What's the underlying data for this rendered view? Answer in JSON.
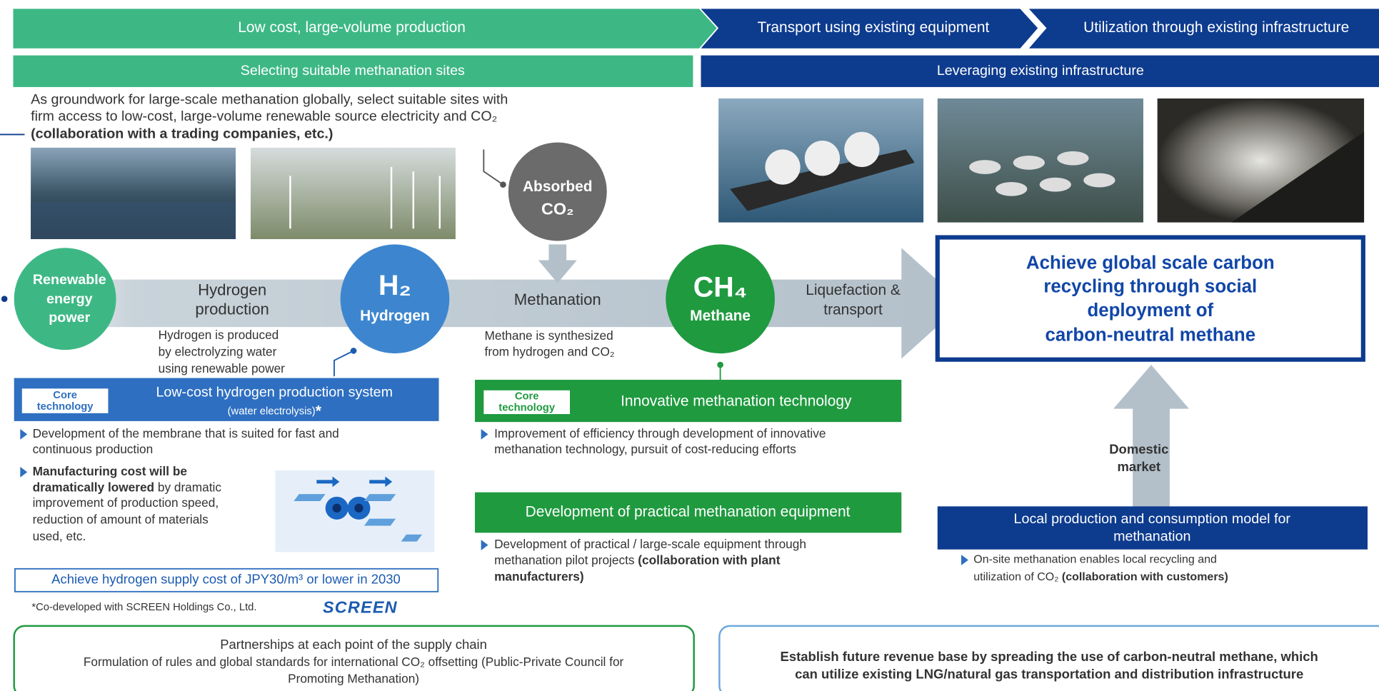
{
  "header": {
    "stage1": "Low cost, large-volume production",
    "stage2": "Transport using existing equipment",
    "stage3": "Utilization through existing infrastructure",
    "sub1": "Selecting suitable methanation sites",
    "sub2": "Leveraging existing infrastructure"
  },
  "sites": {
    "lines": [
      "As groundwork for large-scale methanation globally, select suitable sites with",
      "firm access to low-cost, large-volume renewable source electricity and CO₂",
      "(collaboration with a trading companies, etc.)"
    ]
  },
  "flow": {
    "renewable": [
      "Renewable",
      "energy",
      "power"
    ],
    "hydrogen_production": [
      "Hydrogen",
      "production"
    ],
    "hydrogen_note": [
      "Hydrogen is produced",
      "by electrolyzing water",
      "using renewable power"
    ],
    "h2_symbol": "H₂",
    "h2_label": "Hydrogen",
    "co2": [
      "Absorbed",
      "CO₂"
    ],
    "methanation": "Methanation",
    "methane_note": [
      "Methane is synthesized",
      "from hydrogen and CO₂"
    ],
    "ch4_symbol": "CH₄",
    "ch4_label": "Methane",
    "liquefaction": [
      "Liquefaction &",
      "transport"
    ]
  },
  "goal": [
    "Achieve global scale carbon",
    "recycling through social",
    "deployment of",
    "carbon-neutral methane"
  ],
  "domestic": [
    "Domestic",
    "market"
  ],
  "hydrogen_system": {
    "badge": [
      "Core",
      "technology"
    ],
    "title": "Low-cost hydrogen production system",
    "subtitle": "(water electrolysis)",
    "asterisk": "*",
    "bullet1": [
      "Development of the membrane that is suited for fast and",
      "continuous production"
    ],
    "bullet2_bold": [
      "Manufacturing cost will be",
      "dramatically lowered"
    ],
    "bullet2": [
      " by dramatic",
      "improvement of production speed,",
      "reduction of amount of materials",
      "used, etc."
    ],
    "target": "Achieve hydrogen supply cost of JPY30/m³ or lower in 2030",
    "footnote": "*Co-developed with SCREEN Holdings Co., Ltd.",
    "logo": "SCREEN"
  },
  "methanation_tech": {
    "badge": [
      "Core",
      "technology"
    ],
    "title": "Innovative methanation technology",
    "bullet": [
      "Improvement of efficiency through development of innovative",
      "methanation technology, pursuit of cost-reducing efforts"
    ]
  },
  "practical": {
    "title": "Development of practical methanation equipment",
    "bullet": [
      "Development of practical / large-scale equipment through",
      "methanation pilot projects "
    ],
    "bullet_bold": [
      "(collaboration with plant",
      "manufacturers)"
    ]
  },
  "local": {
    "title": [
      "Local production and consumption model for",
      "methanation"
    ],
    "bullet": [
      "On-site methanation enables local recycling and",
      "utilization of CO₂ "
    ],
    "bullet_bold": "(collaboration with customers)"
  },
  "partnerships": {
    "title": "Partnerships at each point of the supply chain",
    "lines": [
      "Formulation of rules and global standards for international CO₂ offsetting (Public-Private Council for",
      "Promoting Methanation)"
    ]
  },
  "revenue": {
    "lines": [
      "Establish future revenue base by spreading the use of carbon-neutral methane, which",
      "can utilize existing LNG/natural gas transportation and distribution infrastructure"
    ]
  }
}
